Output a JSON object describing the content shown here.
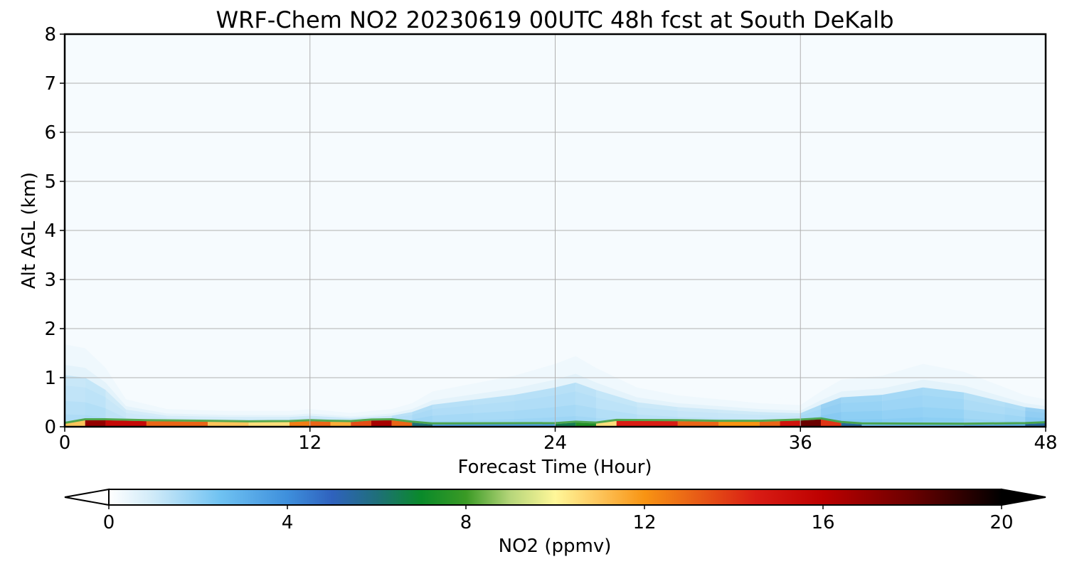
{
  "chart_data": {
    "type": "heatmap",
    "title": "WRF-Chem NO2  20230619 00UTC 48h fcst at South DeKalb",
    "xlabel": "Forecast Time (Hour)",
    "ylabel": "Alt AGL (km)",
    "xlim": [
      0,
      48
    ],
    "ylim": [
      0,
      8
    ],
    "x_ticks": [
      "0",
      "12",
      "24",
      "36",
      "48"
    ],
    "y_ticks": [
      "0",
      "1",
      "2",
      "3",
      "4",
      "5",
      "6",
      "7",
      "8"
    ],
    "grid": true,
    "colorbar": {
      "label": "NO2  (ppmv)",
      "range": [
        0,
        20
      ],
      "ticks": [
        "0",
        "4",
        "8",
        "12",
        "16",
        "20"
      ],
      "extend": "both",
      "orientation": "horizontal",
      "stops": [
        {
          "v": 0,
          "c": "#ffffff"
        },
        {
          "v": 1,
          "c": "#cfeaf8"
        },
        {
          "v": 2.5,
          "c": "#6fc2f2"
        },
        {
          "v": 4,
          "c": "#3e8fdc"
        },
        {
          "v": 5,
          "c": "#2f62be"
        },
        {
          "v": 6,
          "c": "#1f6f7a"
        },
        {
          "v": 7,
          "c": "#0a8a2a"
        },
        {
          "v": 8,
          "c": "#3a9a25"
        },
        {
          "v": 9,
          "c": "#b6d67a"
        },
        {
          "v": 10,
          "c": "#fff799"
        },
        {
          "v": 11,
          "c": "#fdc45a"
        },
        {
          "v": 12,
          "c": "#f89413"
        },
        {
          "v": 13,
          "c": "#ea6516"
        },
        {
          "v": 14.5,
          "c": "#d91c14"
        },
        {
          "v": 16,
          "c": "#bd0000"
        },
        {
          "v": 18,
          "c": "#6a0000"
        },
        {
          "v": 20,
          "c": "#000000"
        }
      ]
    },
    "boundary_layer": [
      {
        "t": 0,
        "h": 2.1,
        "v": 0.3
      },
      {
        "t": 1,
        "h": 2.0,
        "v": 0.9
      },
      {
        "t": 2,
        "h": 1.5,
        "v": 0.5
      },
      {
        "t": 3,
        "h": 0.7,
        "v": 0.3
      },
      {
        "t": 5,
        "h": 0.45,
        "v": 0.25
      },
      {
        "t": 8,
        "h": 0.4,
        "v": 0.2
      },
      {
        "t": 11,
        "h": 0.4,
        "v": 0.25
      },
      {
        "t": 12,
        "h": 0.45,
        "v": 0.6
      },
      {
        "t": 14,
        "h": 0.35,
        "v": 0.45
      },
      {
        "t": 16,
        "h": 0.45,
        "v": 0.6
      },
      {
        "t": 17,
        "h": 0.6,
        "v": 1.3
      },
      {
        "t": 18,
        "h": 0.9,
        "v": 1.1
      },
      {
        "t": 20,
        "h": 1.1,
        "v": 1.0
      },
      {
        "t": 22,
        "h": 1.3,
        "v": 1.0
      },
      {
        "t": 24,
        "h": 1.6,
        "v": 1.1
      },
      {
        "t": 25,
        "h": 1.8,
        "v": 1.0
      },
      {
        "t": 26,
        "h": 1.5,
        "v": 0.8
      },
      {
        "t": 28,
        "h": 1.0,
        "v": 0.6
      },
      {
        "t": 30,
        "h": 0.8,
        "v": 0.5
      },
      {
        "t": 32,
        "h": 0.7,
        "v": 0.4
      },
      {
        "t": 34,
        "h": 0.6,
        "v": 0.4
      },
      {
        "t": 36,
        "h": 0.55,
        "v": 0.6
      },
      {
        "t": 37,
        "h": 0.9,
        "v": 2.0
      },
      {
        "t": 38,
        "h": 1.2,
        "v": 1.8
      },
      {
        "t": 40,
        "h": 1.3,
        "v": 1.5
      },
      {
        "t": 42,
        "h": 1.6,
        "v": 1.6
      },
      {
        "t": 44,
        "h": 1.4,
        "v": 1.3
      },
      {
        "t": 46,
        "h": 1.0,
        "v": 0.9
      },
      {
        "t": 47,
        "h": 0.8,
        "v": 1.6
      },
      {
        "t": 48,
        "h": 0.7,
        "v": 2.3
      }
    ],
    "surface_no2": [
      {
        "t": 0,
        "v": 5
      },
      {
        "t": 1,
        "v": 17
      },
      {
        "t": 2,
        "v": 17
      },
      {
        "t": 4,
        "v": 14
      },
      {
        "t": 7,
        "v": 12
      },
      {
        "t": 9,
        "v": 10
      },
      {
        "t": 11,
        "v": 11
      },
      {
        "t": 12,
        "v": 14
      },
      {
        "t": 13,
        "v": 12
      },
      {
        "t": 14,
        "v": 11
      },
      {
        "t": 15,
        "v": 16
      },
      {
        "t": 16,
        "v": 17
      },
      {
        "t": 17,
        "v": 9
      },
      {
        "t": 18,
        "v": 3
      },
      {
        "t": 24,
        "v": 4
      },
      {
        "t": 25,
        "v": 9
      },
      {
        "t": 26,
        "v": 6
      },
      {
        "t": 27,
        "v": 15
      },
      {
        "t": 30,
        "v": 14
      },
      {
        "t": 32,
        "v": 12
      },
      {
        "t": 34,
        "v": 12
      },
      {
        "t": 35,
        "v": 14
      },
      {
        "t": 36,
        "v": 16
      },
      {
        "t": 37,
        "v": 20
      },
      {
        "t": 38,
        "v": 8
      },
      {
        "t": 39,
        "v": 3
      },
      {
        "t": 44,
        "v": 2
      },
      {
        "t": 47,
        "v": 4
      },
      {
        "t": 48,
        "v": 7
      }
    ]
  }
}
